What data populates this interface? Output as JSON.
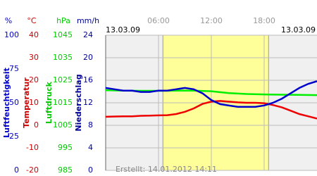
{
  "chart_data": {
    "type": "line",
    "date_left": "13.03.09",
    "date_right": "13.03.09",
    "footer": "Erstellt: 14.01.2012 14:11",
    "xlim": [
      0,
      24
    ],
    "xticks": [
      {
        "value": 6,
        "label": "06:00"
      },
      {
        "value": 12,
        "label": "12:00"
      },
      {
        "value": 18,
        "label": "18:00"
      }
    ],
    "daylight": [
      6.5,
      18.5
    ],
    "grid": true,
    "axes": [
      {
        "unit": "%",
        "label": "Luftfeuchtigkeit",
        "color": "#0000cc",
        "lim": [
          0,
          100
        ],
        "ticks": [
          100,
          75,
          50,
          25,
          0
        ]
      },
      {
        "unit": "°C",
        "label": "Temperatur",
        "color": "#cc0000",
        "lim": [
          -20,
          40
        ],
        "ticks": [
          40,
          30,
          20,
          10,
          0,
          -10,
          -20
        ]
      },
      {
        "unit": "hPa",
        "label": "Luftdruck",
        "color": "#00cc00",
        "lim": [
          985,
          1045
        ],
        "ticks": [
          1045,
          1035,
          1025,
          1015,
          1005,
          995,
          985
        ]
      },
      {
        "unit": "mm/h",
        "label": "Niederschlag",
        "color": "#000099",
        "lim": [
          0,
          24
        ],
        "ticks": [
          24,
          20,
          16,
          12,
          8,
          4,
          0
        ]
      }
    ],
    "series": [
      {
        "name": "Luftdruck",
        "color": "#00ee00",
        "axis": 2,
        "x": [
          0,
          2,
          4,
          6,
          8,
          10,
          12,
          14,
          16,
          18,
          20,
          22,
          24
        ],
        "values": [
          1020.6,
          1020.4,
          1020.3,
          1020.3,
          1020.4,
          1020.4,
          1020.1,
          1019.3,
          1018.9,
          1018.7,
          1018.6,
          1018.5,
          1018.4
        ]
      },
      {
        "name": "Temperatur",
        "color": "#ee0000",
        "axis": 1,
        "x": [
          0,
          1,
          2,
          3,
          4,
          5,
          6,
          7,
          8,
          9,
          10,
          11,
          12,
          13,
          14,
          15,
          16,
          17,
          18,
          19,
          20,
          21,
          22,
          23,
          24
        ],
        "values": [
          3.8,
          3.9,
          4,
          4,
          4.2,
          4.3,
          4.4,
          4.5,
          5,
          6,
          7.5,
          9.5,
          10.5,
          10.8,
          10.5,
          10.2,
          10,
          10,
          9.8,
          9,
          8,
          6.5,
          5,
          4,
          3
        ]
      },
      {
        "name": "Luftfeuchtigkeit",
        "color": "#0000cc",
        "axis": 0,
        "x": [
          0,
          1,
          2,
          3,
          4,
          5,
          6,
          7,
          8,
          9,
          10,
          11,
          12,
          13,
          14,
          15,
          16,
          17,
          18,
          19,
          20,
          21,
          22,
          23,
          24
        ],
        "values": [
          61,
          60,
          59,
          59,
          58,
          58,
          59,
          59,
          60,
          61,
          60,
          57,
          52,
          49,
          48,
          47,
          47,
          47,
          48,
          50,
          53,
          57,
          61,
          64,
          66
        ]
      }
    ]
  }
}
